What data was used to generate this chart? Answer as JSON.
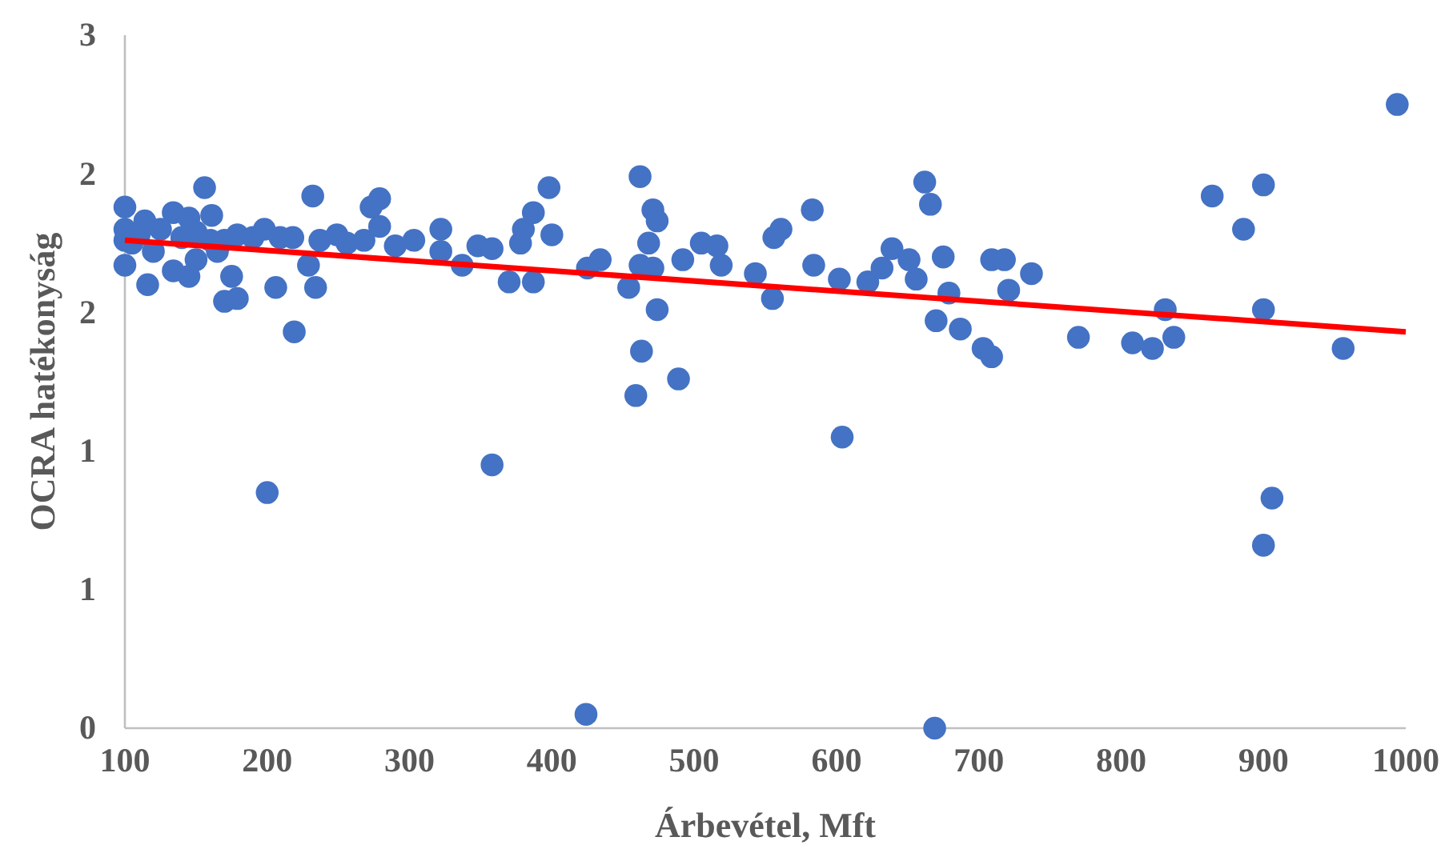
{
  "chart_data": {
    "type": "scatter",
    "xlabel": "Árbevétel, Mft",
    "ylabel": "OCRA hatékonyság",
    "xlim": [
      100,
      1000
    ],
    "xticks": [
      100,
      200,
      300,
      400,
      500,
      600,
      700,
      800,
      900,
      1000
    ],
    "ylim": [
      0,
      2.5
    ],
    "yticks": [
      {
        "value": 0,
        "label": "0"
      },
      {
        "value": 0.5,
        "label": "1"
      },
      {
        "value": 1,
        "label": "1"
      },
      {
        "value": 1.5,
        "label": "2"
      },
      {
        "value": 2,
        "label": "2"
      },
      {
        "value": 2.5,
        "label": "3"
      }
    ],
    "grid": false,
    "marker": "circle",
    "series": [
      {
        "color": "#4472c4",
        "x": [
          100,
          100,
          100,
          116,
          114,
          134,
          145,
          156,
          161,
          150,
          145,
          134,
          170,
          179,
          175,
          170,
          179,
          198,
          206,
          209,
          218,
          219,
          200,
          232,
          229,
          234,
          237,
          249,
          256,
          268,
          273,
          279,
          279,
          290,
          303,
          322,
          322,
          337,
          348,
          358,
          370,
          378,
          380,
          387,
          398,
          400,
          387,
          358,
          425,
          434,
          454,
          462,
          471,
          474,
          468,
          462,
          471,
          474,
          463,
          459,
          489,
          492,
          505,
          516,
          519,
          543,
          555,
          556,
          561,
          583,
          584,
          602,
          604,
          622,
          632,
          639,
          651,
          656,
          662,
          666,
          670,
          675,
          679,
          687,
          703,
          709,
          709,
          718,
          721,
          737,
          770,
          808,
          822,
          831,
          837,
          864,
          886,
          900,
          900,
          906,
          956,
          994,
          424,
          669,
          900,
          100,
          105,
          110,
          120,
          125,
          140,
          150,
          160,
          190,
          165
        ],
        "values": [
          1.88,
          1.76,
          1.67,
          1.6,
          1.83,
          1.86,
          1.84,
          1.95,
          1.85,
          1.69,
          1.63,
          1.65,
          1.76,
          1.78,
          1.63,
          1.54,
          1.55,
          1.8,
          1.59,
          1.77,
          1.77,
          1.43,
          0.85,
          1.92,
          1.67,
          1.59,
          1.76,
          1.78,
          1.75,
          1.76,
          1.88,
          1.91,
          1.81,
          1.74,
          1.76,
          1.8,
          1.72,
          1.67,
          1.74,
          1.73,
          1.61,
          1.75,
          1.8,
          1.86,
          1.95,
          1.78,
          1.61,
          0.95,
          1.66,
          1.69,
          1.59,
          1.99,
          1.87,
          1.83,
          1.75,
          1.67,
          1.66,
          1.51,
          1.36,
          1.2,
          1.26,
          1.69,
          1.75,
          1.74,
          1.67,
          1.64,
          1.55,
          1.77,
          1.8,
          1.87,
          1.67,
          1.62,
          1.05,
          1.61,
          1.66,
          1.73,
          1.69,
          1.62,
          1.97,
          1.89,
          1.47,
          1.7,
          1.57,
          1.44,
          1.37,
          1.34,
          1.69,
          1.69,
          1.58,
          1.64,
          1.41,
          1.39,
          1.37,
          1.51,
          1.41,
          1.92,
          1.8,
          1.96,
          1.51,
          0.83,
          1.37,
          2.25,
          0.05,
          0,
          0.66,
          1.8,
          1.75,
          1.78,
          1.72,
          1.8,
          1.77,
          1.79,
          1.76,
          1.77,
          1.72
        ]
      },
      {
        "type": "line",
        "color": "#ff0000",
        "line_style": "solid",
        "marker": "none",
        "x": [
          100,
          1000
        ],
        "values": [
          1.76,
          1.43
        ]
      }
    ]
  }
}
